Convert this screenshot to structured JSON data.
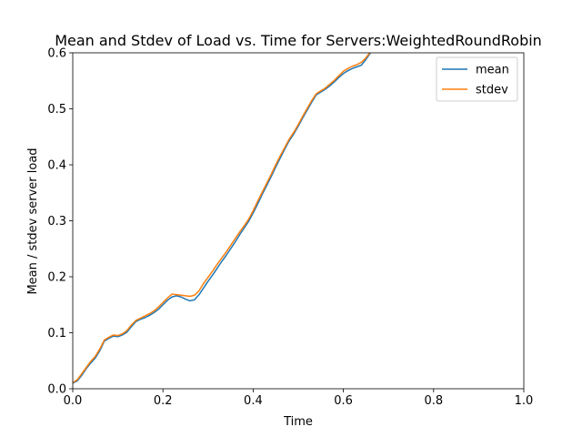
{
  "chart_data": {
    "type": "line",
    "title": "Mean and Stdev of Load vs. Time for Servers:WeightedRoundRobin",
    "xlabel": "Time",
    "ylabel": "Mean / stdev server load",
    "xlim": [
      0,
      1
    ],
    "ylim": [
      0,
      0.6
    ],
    "xticks": [
      "0.0",
      "0.2",
      "0.4",
      "0.6",
      "0.8",
      "1.0"
    ],
    "yticks": [
      "0.0",
      "0.1",
      "0.2",
      "0.3",
      "0.4",
      "0.5",
      "0.6"
    ],
    "grid": false,
    "legend": "top-right",
    "series": [
      {
        "name": "mean",
        "color": "#1f77b4",
        "x": [
          0.0,
          0.01,
          0.02,
          0.03,
          0.04,
          0.05,
          0.06,
          0.07,
          0.08,
          0.09,
          0.1,
          0.11,
          0.12,
          0.13,
          0.14,
          0.15,
          0.16,
          0.17,
          0.18,
          0.19,
          0.2,
          0.21,
          0.22,
          0.23,
          0.24,
          0.25,
          0.26,
          0.27,
          0.28,
          0.29,
          0.3,
          0.31,
          0.32,
          0.33,
          0.34,
          0.35,
          0.36,
          0.37,
          0.38,
          0.39,
          0.4,
          0.41,
          0.42,
          0.43,
          0.44,
          0.45,
          0.46,
          0.47,
          0.48,
          0.49,
          0.5,
          0.51,
          0.52,
          0.53,
          0.54,
          0.55,
          0.56,
          0.57,
          0.58,
          0.59,
          0.6,
          0.61,
          0.62,
          0.63,
          0.64,
          0.65,
          0.66
        ],
        "y": [
          0.01,
          0.014,
          0.024,
          0.036,
          0.046,
          0.055,
          0.068,
          0.085,
          0.09,
          0.094,
          0.093,
          0.096,
          0.101,
          0.111,
          0.12,
          0.124,
          0.127,
          0.131,
          0.136,
          0.142,
          0.15,
          0.158,
          0.164,
          0.166,
          0.164,
          0.16,
          0.157,
          0.159,
          0.168,
          0.18,
          0.192,
          0.203,
          0.215,
          0.227,
          0.238,
          0.25,
          0.262,
          0.275,
          0.287,
          0.299,
          0.314,
          0.33,
          0.347,
          0.363,
          0.379,
          0.396,
          0.412,
          0.428,
          0.443,
          0.455,
          0.469,
          0.484,
          0.498,
          0.512,
          0.525,
          0.53,
          0.535,
          0.541,
          0.548,
          0.556,
          0.563,
          0.568,
          0.572,
          0.575,
          0.578,
          0.588,
          0.6
        ]
      },
      {
        "name": "stdev",
        "color": "#ff7f0e",
        "x": [
          0.0,
          0.01,
          0.02,
          0.03,
          0.04,
          0.05,
          0.06,
          0.07,
          0.08,
          0.09,
          0.1,
          0.11,
          0.12,
          0.13,
          0.14,
          0.15,
          0.16,
          0.17,
          0.18,
          0.19,
          0.2,
          0.21,
          0.22,
          0.23,
          0.24,
          0.25,
          0.26,
          0.27,
          0.28,
          0.29,
          0.3,
          0.31,
          0.32,
          0.33,
          0.34,
          0.35,
          0.36,
          0.37,
          0.38,
          0.39,
          0.4,
          0.41,
          0.42,
          0.43,
          0.44,
          0.45,
          0.46,
          0.47,
          0.48,
          0.49,
          0.5,
          0.51,
          0.52,
          0.53,
          0.54,
          0.55,
          0.56,
          0.57,
          0.58,
          0.59,
          0.6,
          0.61,
          0.62,
          0.63,
          0.64,
          0.65,
          0.66
        ],
        "y": [
          0.011,
          0.016,
          0.027,
          0.038,
          0.049,
          0.058,
          0.071,
          0.087,
          0.092,
          0.096,
          0.095,
          0.098,
          0.104,
          0.114,
          0.122,
          0.126,
          0.13,
          0.134,
          0.139,
          0.146,
          0.154,
          0.162,
          0.169,
          0.168,
          0.167,
          0.166,
          0.165,
          0.167,
          0.175,
          0.188,
          0.199,
          0.21,
          0.222,
          0.233,
          0.244,
          0.256,
          0.268,
          0.28,
          0.291,
          0.303,
          0.318,
          0.335,
          0.351,
          0.367,
          0.383,
          0.4,
          0.416,
          0.431,
          0.446,
          0.458,
          0.472,
          0.487,
          0.501,
          0.515,
          0.527,
          0.532,
          0.537,
          0.544,
          0.551,
          0.559,
          0.567,
          0.572,
          0.576,
          0.579,
          0.583,
          0.591,
          0.602
        ]
      }
    ]
  }
}
